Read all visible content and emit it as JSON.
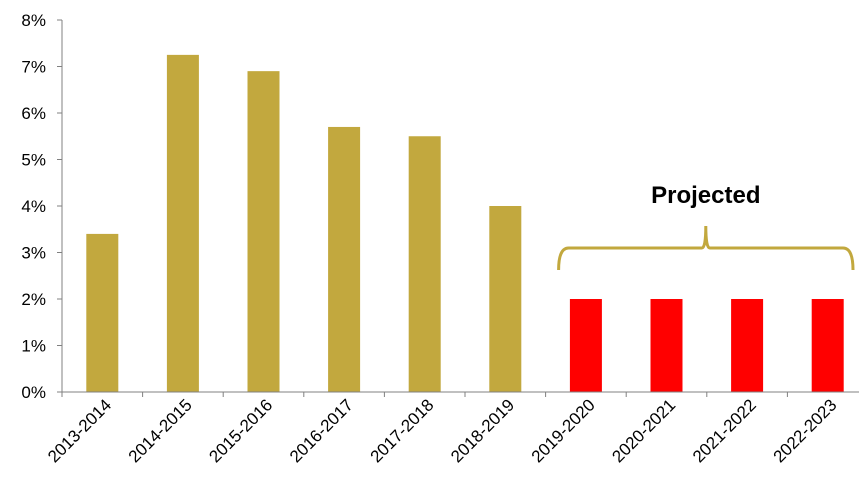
{
  "chart_data": {
    "type": "bar",
    "title": "",
    "xlabel": "",
    "ylabel": "",
    "categories": [
      "2013-2014",
      "2014-2015",
      "2015-2016",
      "2016-2017",
      "2017-2018",
      "2018-2019",
      "2019-2020",
      "2020-2021",
      "2021-2022",
      "2022-2023"
    ],
    "values": [
      0.034,
      0.0725,
      0.069,
      0.057,
      0.055,
      0.04,
      0.02,
      0.02,
      0.02,
      0.02
    ],
    "projected": [
      false,
      false,
      false,
      false,
      false,
      false,
      true,
      true,
      true,
      true
    ],
    "ylim": [
      0,
      0.08
    ],
    "y_ticks": [
      0,
      0.01,
      0.02,
      0.03,
      0.04,
      0.05,
      0.06,
      0.07,
      0.08
    ],
    "y_tick_labels": [
      "0%",
      "1%",
      "2%",
      "3%",
      "4%",
      "5%",
      "6%",
      "7%",
      "8%"
    ],
    "grid": false,
    "colors": {
      "actual": "#C2A83E",
      "projected": "#FF0000",
      "axis": "#808080",
      "bracket": "#C2A83E"
    },
    "annotations": [
      {
        "text": "Projected",
        "type": "bracket",
        "from_category": "2019-2020",
        "to_category": "2022-2023"
      }
    ]
  }
}
